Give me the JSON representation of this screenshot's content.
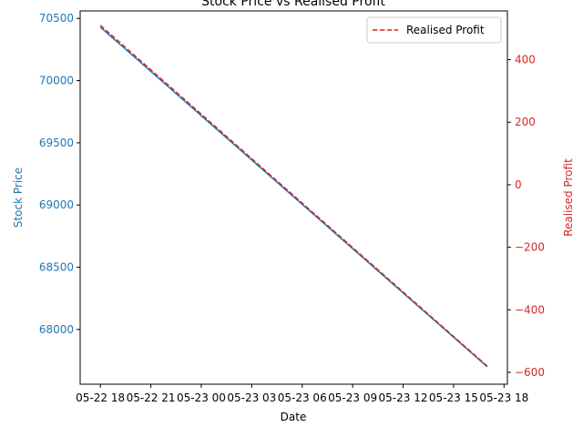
{
  "chart_data": {
    "type": "line",
    "title": "Stock Price vs Realised Profit",
    "xlabel": "Date",
    "x_ticks": [
      "05-22 18",
      "05-22 21",
      "05-23 00",
      "05-23 03",
      "05-23 06",
      "05-23 09",
      "05-23 12",
      "05-23 15",
      "05-23 18"
    ],
    "x": [
      "2023-05-22 18:00",
      "2023-05-23 17:00"
    ],
    "xlim": [
      "2023-05-22 16:48",
      "2023-05-23 18:12"
    ],
    "grid": false,
    "legend": {
      "position": "top-right",
      "entries": [
        "Realised Profit"
      ]
    },
    "axes": {
      "left": {
        "label": "Stock Price",
        "color": "#1f77b4",
        "ticks": [
          68000,
          68500,
          69000,
          69500,
          70000,
          70500
        ],
        "ylim": [
          67560,
          70560
        ]
      },
      "right": {
        "label": "Realised Profit",
        "color": "#d62728",
        "ticks": [
          -600,
          -400,
          -200,
          0,
          200,
          400
        ],
        "ylim": [
          -638,
          556
        ]
      }
    },
    "series": [
      {
        "axis": "left",
        "color": "#1f77b4",
        "style": "solid",
        "values": [
          70430,
          67700
        ]
      },
      {
        "name": "Realised Profit",
        "axis": "right",
        "color": "#d62728",
        "style": "dashed",
        "values": [
          510,
          -580
        ]
      }
    ]
  }
}
